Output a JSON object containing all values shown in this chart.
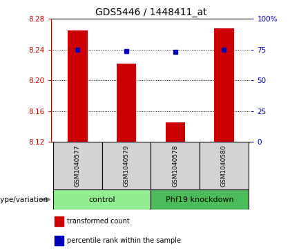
{
  "title": "GDS5446 / 1448411_at",
  "samples": [
    "GSM1040577",
    "GSM1040579",
    "GSM1040578",
    "GSM1040580"
  ],
  "bar_values": [
    8.265,
    8.222,
    8.145,
    8.268
  ],
  "percentile_values": [
    8.24,
    8.238,
    8.237,
    8.24
  ],
  "ylim_left": [
    8.12,
    8.28
  ],
  "ylim_right": [
    0,
    100
  ],
  "yticks_left": [
    8.12,
    8.16,
    8.2,
    8.24,
    8.28
  ],
  "yticks_right": [
    0,
    25,
    50,
    75,
    100
  ],
  "ytick_labels_right": [
    "0",
    "25",
    "50",
    "75",
    "100%"
  ],
  "groups": [
    {
      "label": "control",
      "samples": [
        0,
        1
      ],
      "color": "#90EE90"
    },
    {
      "label": "Phf19 knockdown",
      "samples": [
        2,
        3
      ],
      "color": "#4CBB5A"
    }
  ],
  "bar_color": "#CC0000",
  "dot_color": "#0000BB",
  "bar_bottom": 8.12,
  "bg_color": "#D3D3D3",
  "plot_bg": "#FFFFFF",
  "left_tick_color": "#CC0000",
  "right_tick_color": "#0000BB",
  "legend_items": [
    {
      "color": "#CC0000",
      "label": "transformed count"
    },
    {
      "color": "#0000BB",
      "label": "percentile rank within the sample"
    }
  ],
  "xlim": [
    -0.55,
    3.55
  ],
  "bar_width": 0.4,
  "dot_size": 5,
  "title_fontsize": 10,
  "tick_fontsize": 7.5,
  "sample_fontsize": 6.5,
  "group_fontsize": 8,
  "legend_fontsize": 7,
  "genotype_label": "genotype/variation"
}
